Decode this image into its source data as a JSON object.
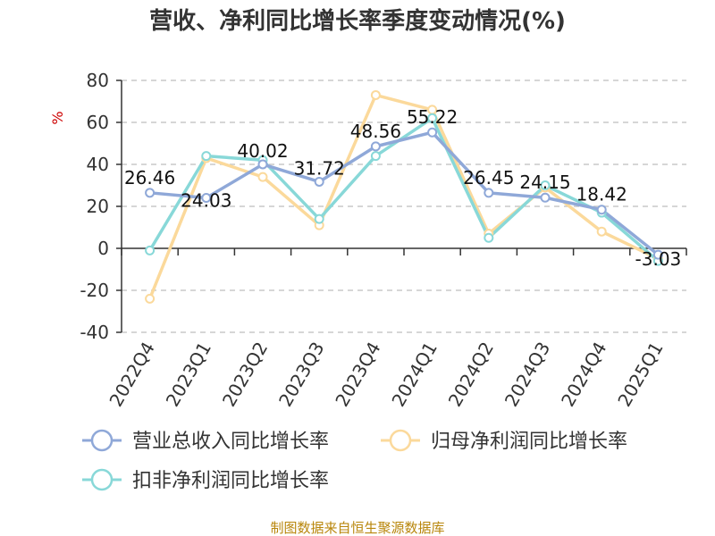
{
  "chart_data": {
    "type": "line",
    "title": "营收、净利同比增长率季度变动情况(%)",
    "ylabel": "%",
    "xlabel": "",
    "categories": [
      "2022Q4",
      "2023Q1",
      "2023Q2",
      "2023Q3",
      "2023Q4",
      "2024Q1",
      "2024Q2",
      "2024Q3",
      "2024Q4",
      "2025Q1"
    ],
    "ylim": [
      -40,
      80
    ],
    "yticks": [
      "80",
      "60",
      "40",
      "20",
      "0",
      "-20",
      "-40"
    ],
    "grid": true,
    "legend_placement": "bottom",
    "series": [
      {
        "name": "营业总收入同比增长率",
        "color": "#8fa8d8",
        "values": [
          26.46,
          24.03,
          40.02,
          31.72,
          48.56,
          55.22,
          26.45,
          24.15,
          18.42,
          -3.03
        ],
        "labels": [
          "26.46",
          "24.03",
          "40.02",
          "31.72",
          "48.56",
          "55.22",
          "26.45",
          "24.15",
          "18.42",
          "-3.03"
        ]
      },
      {
        "name": "归母净利润同比增长率",
        "color": "#fbd99b",
        "values": [
          -24,
          43,
          34,
          11,
          73,
          66,
          7,
          29,
          8,
          -5
        ]
      },
      {
        "name": "扣非净利润同比增长率",
        "color": "#88d8d8",
        "values": [
          -1,
          44,
          42,
          14,
          44,
          62,
          5,
          30,
          17,
          -6
        ]
      }
    ]
  },
  "footer": "制图数据来自恒生聚源数据库"
}
